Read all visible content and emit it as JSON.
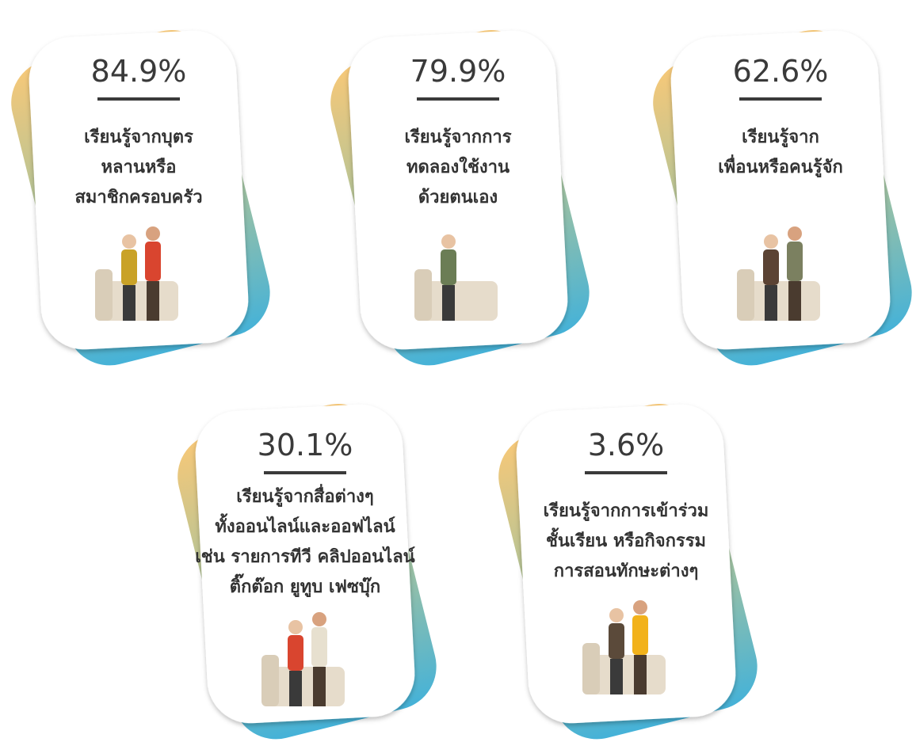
{
  "cards": [
    {
      "percent": "84.9%",
      "lines": [
        "เรียนรู้จากบุตร",
        "หลานหรือ",
        "สมาชิกครอบครัว"
      ]
    },
    {
      "percent": "79.9%",
      "lines": [
        "เรียนรู้จากการ",
        "ทดลองใช้งาน",
        "ด้วยตนเอง"
      ]
    },
    {
      "percent": "62.6%",
      "lines": [
        "เรียนรู้จาก",
        "เพื่อนหรือคนรู้จัก"
      ]
    },
    {
      "percent": "30.1%",
      "lines": [
        "เรียนรู้จากสื่อต่างๆ",
        "ทั้งออนไลน์และออฟไลน์",
        "เช่น รายการทีวี คลิปออนไลน์",
        "ติ๊กต๊อก ยูทูบ เฟซบุ๊ก"
      ]
    },
    {
      "percent": "3.6%",
      "lines": [
        "เรียนรู้จากการเข้าร่วม",
        "ชั้นเรียน หรือกิจกรรม",
        "การสอนทักษะต่างๆ"
      ]
    }
  ]
}
